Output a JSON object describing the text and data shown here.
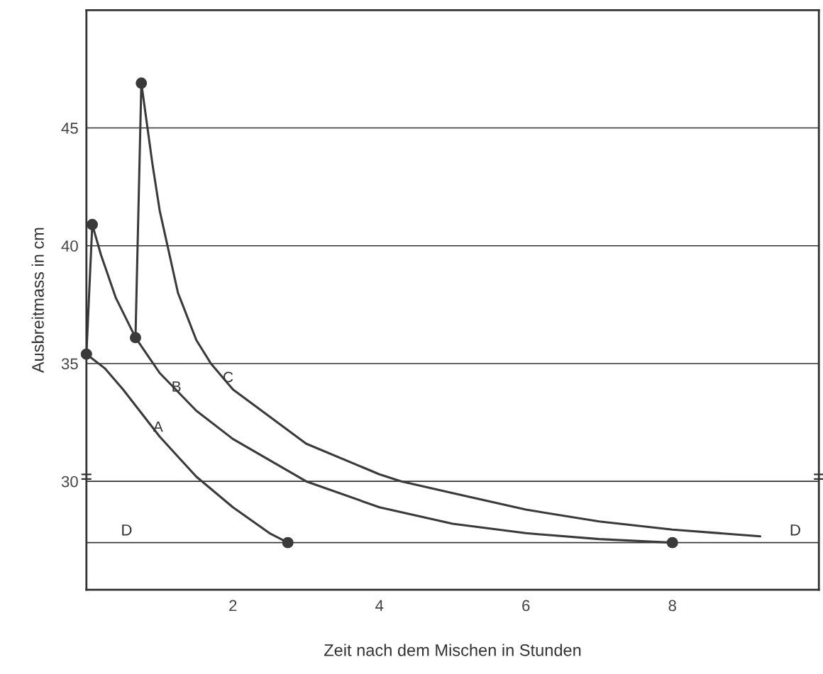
{
  "chart_data": {
    "type": "line",
    "xlabel": "Zeit nach dem Mischen in Stunden",
    "ylabel": "Ausbreitmass in cm",
    "xlim": [
      0,
      10
    ],
    "ylim": [
      25.4,
      50
    ],
    "xticks": [
      2,
      4,
      6,
      8
    ],
    "yticks": [
      30,
      35,
      40,
      45
    ],
    "grid": "y",
    "marker": "none",
    "line_style": "solid",
    "series": [
      {
        "name": "A",
        "color": "#3a3a3a",
        "x": [
          0,
          0.25,
          0.5,
          0.75,
          1.0,
          1.5,
          2.0,
          2.5,
          2.75
        ],
        "values": [
          35.4,
          34.8,
          33.9,
          32.9,
          31.9,
          30.2,
          28.9,
          27.8,
          27.4
        ]
      },
      {
        "name": "B",
        "color": "#3a3a3a",
        "x": [
          0,
          0.08,
          0.2,
          0.4,
          0.67,
          1.0,
          1.5,
          2.0,
          3.0,
          4.0,
          5.0,
          6.0,
          7.0,
          8.0
        ],
        "values": [
          35.4,
          40.9,
          39.6,
          37.8,
          36.1,
          34.6,
          33.0,
          31.8,
          30.0,
          28.9,
          28.2,
          27.8,
          27.55,
          27.4
        ]
      },
      {
        "name": "C",
        "color": "#3a3a3a",
        "x": [
          0.67,
          0.75,
          0.9,
          1.0,
          1.25,
          1.5,
          1.7,
          2.0,
          3.0,
          4.0,
          4.3,
          5.0,
          6.0,
          7.0,
          8.0,
          9.2
        ],
        "values": [
          36.1,
          46.9,
          43.5,
          41.5,
          38.0,
          36.0,
          35.0,
          33.9,
          31.6,
          30.3,
          30.0,
          29.5,
          28.8,
          28.3,
          27.95,
          27.67
        ]
      },
      {
        "type": "scatter",
        "marker": "circle",
        "color": "#3a3a3a",
        "x": [
          0,
          2.75,
          0.08,
          8.0,
          0.67,
          0.75
        ],
        "values": [
          35.4,
          27.4,
          40.9,
          27.4,
          36.1,
          46.9
        ]
      }
    ],
    "ref_lines": [
      {
        "axis": "y",
        "value": 27.4,
        "label": "D",
        "color": "#3a3a3a"
      }
    ],
    "annotations": [
      {
        "text": "D",
        "x": 9.6,
        "y": 27.4
      }
    ]
  }
}
